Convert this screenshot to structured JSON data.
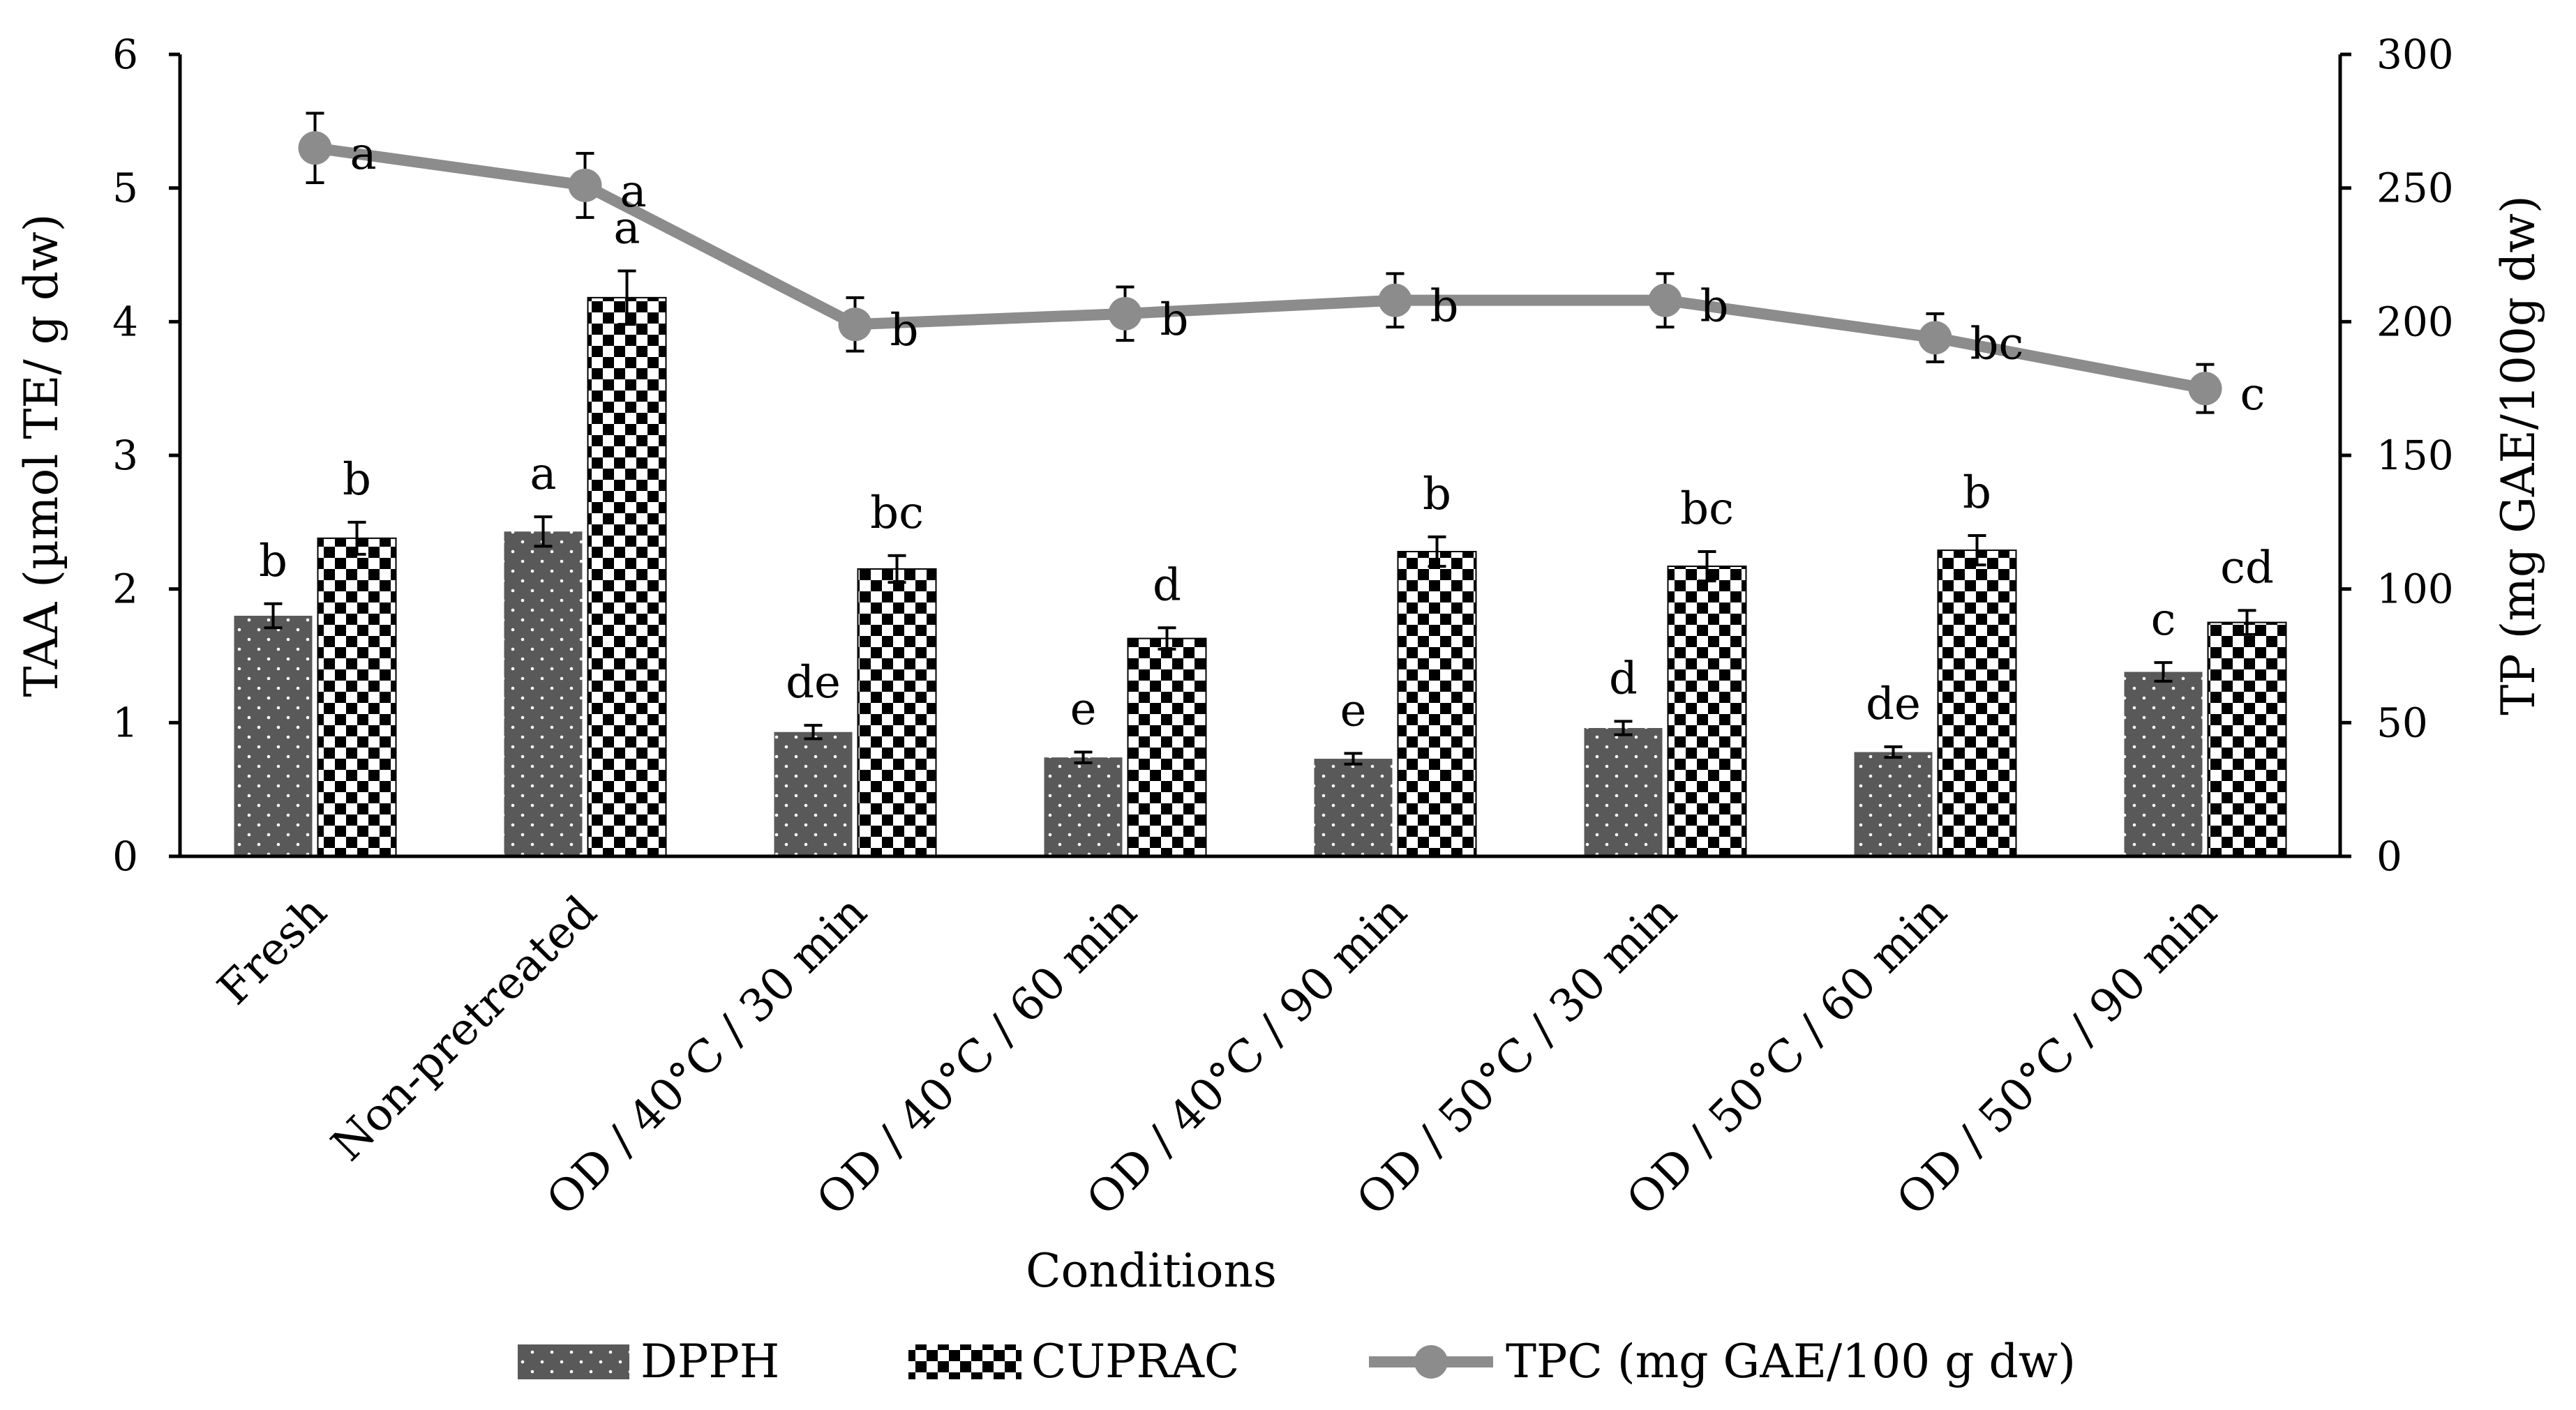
{
  "chart_data": {
    "type": "bar",
    "categories": [
      "Fresh",
      "Non-pretreated",
      "OD / 40°C / 30 min",
      "OD / 40°C / 60 min",
      "OD / 40°C / 90 min",
      "OD / 50°C / 30 min",
      "OD / 50°C / 60 min",
      "OD / 50°C / 90 min"
    ],
    "xlabel": "Conditions",
    "ylabel": "TAA (µmol TE/ g dw)",
    "y2label": "TP (mg GAE/100g dw)",
    "ylim": [
      0,
      6
    ],
    "y2lim": [
      0,
      300
    ],
    "yticks": [
      "0",
      "1",
      "2",
      "3",
      "4",
      "5",
      "6"
    ],
    "y2ticks": [
      "0",
      "50",
      "100",
      "150",
      "200",
      "250",
      "300"
    ],
    "legend_position": "bottom",
    "series": [
      {
        "name": "DPPH",
        "type": "bar",
        "axis": "left",
        "pattern": "dotted",
        "color": "#595959",
        "values": [
          1.8,
          2.43,
          0.93,
          0.74,
          0.73,
          0.96,
          0.78,
          1.38
        ],
        "errors": [
          0.09,
          0.11,
          0.05,
          0.04,
          0.04,
          0.05,
          0.04,
          0.07
        ],
        "letters": [
          "b",
          "a",
          "de",
          "e",
          "e",
          "d",
          "de",
          "c"
        ]
      },
      {
        "name": "CUPRAC",
        "type": "bar",
        "axis": "left",
        "pattern": "checker",
        "color": "#000000",
        "values": [
          2.38,
          4.18,
          2.15,
          1.63,
          2.28,
          2.17,
          2.29,
          1.75
        ],
        "errors": [
          0.12,
          0.2,
          0.1,
          0.08,
          0.11,
          0.11,
          0.11,
          0.09
        ],
        "letters": [
          "b",
          "a",
          "bc",
          "d",
          "b",
          "bc",
          "b",
          "cd"
        ]
      },
      {
        "name": "TPC (mg GAE/100 g dw)",
        "type": "line",
        "axis": "right",
        "color": "#8c8c8c",
        "values": [
          265,
          251,
          199,
          203,
          208,
          208,
          194,
          175
        ],
        "errors": [
          13,
          12,
          10,
          10,
          10,
          10,
          9,
          9
        ],
        "letters": [
          "a",
          "a",
          "b",
          "b",
          "b",
          "b",
          "bc",
          "c"
        ]
      }
    ]
  }
}
